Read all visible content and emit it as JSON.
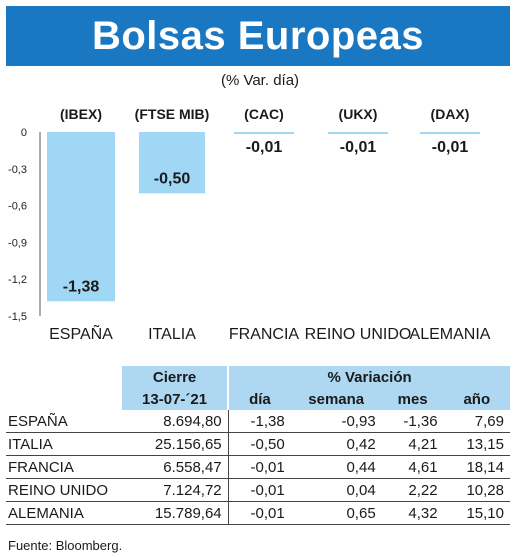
{
  "banner": {
    "title": "Bolsas Europeas"
  },
  "chart_data": {
    "type": "bar",
    "subtitle": "(% Var. día)",
    "indices": [
      "(IBEX)",
      "(FTSE MIB)",
      "(CAC)",
      "(UKX)",
      "(DAX)"
    ],
    "categories": [
      "ESPAÑA",
      "ITALIA",
      "FRANCIA",
      "REINO UNIDO",
      "ALEMANIA"
    ],
    "values": [
      -1.38,
      -0.5,
      -0.01,
      -0.01,
      -0.01
    ],
    "value_labels": [
      "-1,38",
      "-0,50",
      "-0,01",
      "-0,01",
      "-0,01"
    ],
    "yticks": [
      "0",
      "-0,3",
      "-0,6",
      "-0,9",
      "-1,2",
      "-1,5"
    ],
    "ylim": [
      -1.5,
      0
    ],
    "bar_color": "#9fd7f4",
    "grid": false
  },
  "table": {
    "headers": {
      "cierre": "Cierre",
      "variacion": "% Variación",
      "date": "13-07-´21",
      "dia": "día",
      "semana": "semana",
      "mes": "mes",
      "ano": "año"
    },
    "rows": [
      {
        "country": "ESPAÑA",
        "cierre": "8.694,80",
        "dia": "-1,38",
        "semana": "-0,93",
        "mes": "-1,36",
        "ano": "7,69"
      },
      {
        "country": "ITALIA",
        "cierre": "25.156,65",
        "dia": "-0,50",
        "semana": "0,42",
        "mes": "4,21",
        "ano": "13,15"
      },
      {
        "country": "FRANCIA",
        "cierre": "6.558,47",
        "dia": "-0,01",
        "semana": "0,44",
        "mes": "4,61",
        "ano": "18,14"
      },
      {
        "country": "REINO UNIDO",
        "cierre": "7.124,72",
        "dia": "-0,01",
        "semana": "0,04",
        "mes": "2,22",
        "ano": "10,28"
      },
      {
        "country": "ALEMANIA",
        "cierre": "15.789,64",
        "dia": "-0,01",
        "semana": "0,65",
        "mes": "4,32",
        "ano": "15,10"
      }
    ],
    "header_color": "#aed8f1"
  },
  "source": "Fuente: Bloomberg."
}
